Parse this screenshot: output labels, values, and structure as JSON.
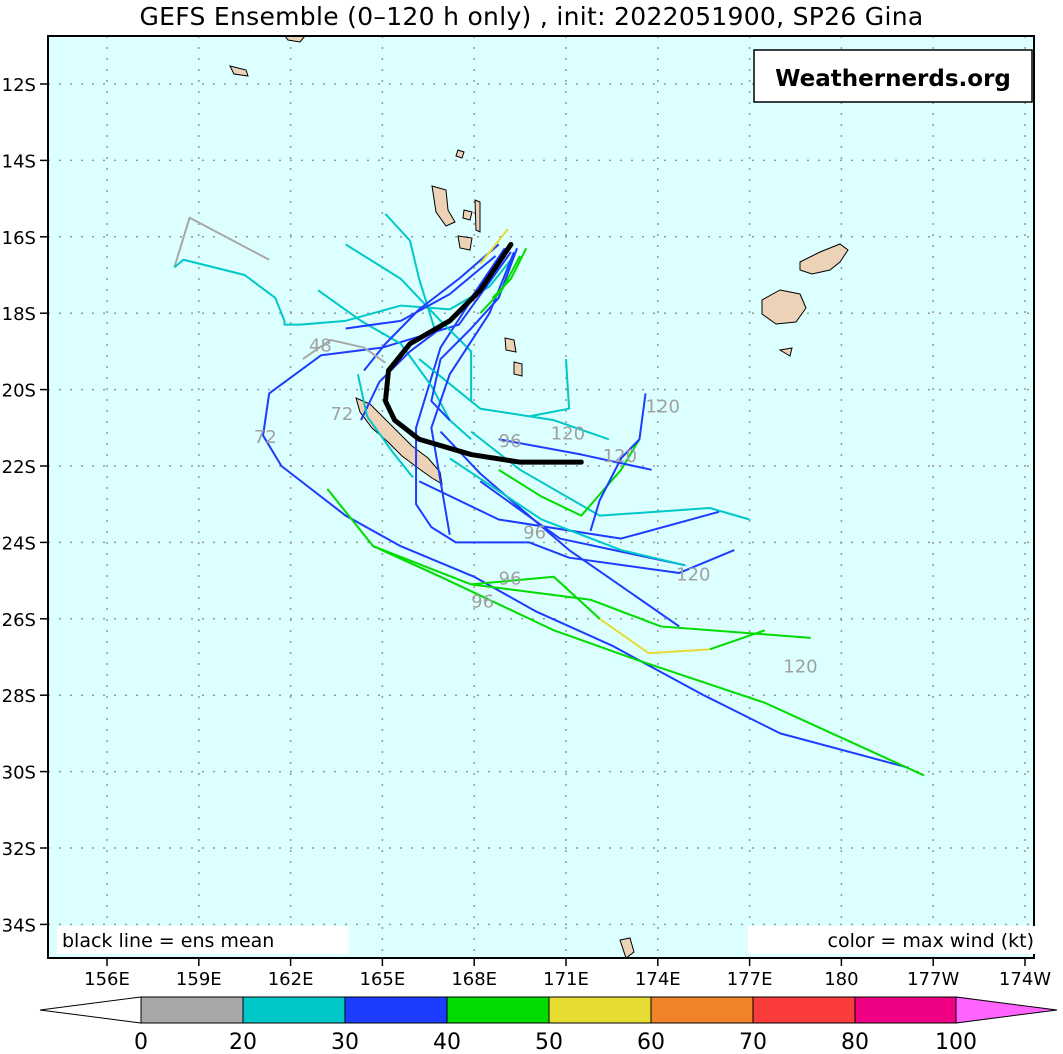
{
  "title": "GEFS Ensemble (0–120 h only) , init: 2022051900, SP26 Gina",
  "watermark": "Weathernerds.org",
  "legend_left": "black line = ens mean",
  "legend_right": "color = max wind (kt)",
  "chart_data": {
    "type": "map-tracks",
    "lon_range": [
      154.1,
      186.2
    ],
    "lat_range": [
      -35.0,
      -10.7
    ],
    "lat_ticks": [
      "12S",
      "14S",
      "16S",
      "18S",
      "20S",
      "22S",
      "24S",
      "26S",
      "28S",
      "30S",
      "32S",
      "34S"
    ],
    "lat_tick_values": [
      -12,
      -14,
      -16,
      -18,
      -20,
      -22,
      -24,
      -26,
      -28,
      -30,
      -32,
      -34
    ],
    "lon_ticks": [
      "156E",
      "159E",
      "162E",
      "165E",
      "168E",
      "171E",
      "174E",
      "177E",
      "180",
      "177W",
      "174W"
    ],
    "lon_tick_values": [
      156,
      159,
      162,
      165,
      168,
      171,
      174,
      177,
      180,
      183,
      186
    ],
    "colorbar": {
      "labels": [
        "0",
        "20",
        "30",
        "40",
        "50",
        "60",
        "70",
        "80",
        "100"
      ],
      "colors": [
        "#a8a8a8",
        "#00c8c8",
        "#1e3cff",
        "#00dc00",
        "#e6dc32",
        "#f08228",
        "#fa3c3c",
        "#f00082",
        "#ff64ff"
      ]
    },
    "hour_labels": [
      {
        "text": "48",
        "lon": 162.6,
        "lat": -19.0
      },
      {
        "text": "72",
        "lon": 163.3,
        "lat": -20.8
      },
      {
        "text": "72",
        "lon": 160.8,
        "lat": -21.4
      },
      {
        "text": "96",
        "lon": 168.8,
        "lat": -21.5
      },
      {
        "text": "120",
        "lon": 170.5,
        "lat": -21.3
      },
      {
        "text": "120",
        "lon": 173.6,
        "lat": -20.6
      },
      {
        "text": "120",
        "lon": 172.2,
        "lat": -21.9
      },
      {
        "text": "96",
        "lon": 169.6,
        "lat": -23.9
      },
      {
        "text": "96",
        "lon": 168.8,
        "lat": -25.1
      },
      {
        "text": "96",
        "lon": 167.9,
        "lat": -25.7
      },
      {
        "text": "120",
        "lon": 174.6,
        "lat": -25.0
      },
      {
        "text": "120",
        "lon": 178.1,
        "lat": -27.4
      }
    ],
    "ensemble_mean": [
      [
        169.2,
        -16.2
      ],
      [
        168.2,
        -17.4
      ],
      [
        167.2,
        -18.2
      ],
      [
        165.9,
        -18.8
      ],
      [
        165.2,
        -19.5
      ],
      [
        165.1,
        -20.3
      ],
      [
        165.4,
        -20.8
      ],
      [
        166.2,
        -21.3
      ],
      [
        167.9,
        -21.7
      ],
      [
        169.5,
        -21.9
      ],
      [
        171.5,
        -21.9
      ]
    ],
    "members": [
      {
        "color": "#a8a8a8",
        "pts": [
          [
            158.2,
            -16.8
          ],
          [
            158.7,
            -15.5
          ],
          [
            161.3,
            -16.6
          ]
        ]
      },
      {
        "color": "#00c8c8",
        "pts": [
          [
            158.2,
            -16.8
          ],
          [
            158.5,
            -16.6
          ],
          [
            160.5,
            -17.0
          ],
          [
            161.5,
            -17.6
          ],
          [
            161.8,
            -18.2
          ],
          [
            161.8,
            -18.3
          ],
          [
            162.3,
            -18.3
          ],
          [
            163.8,
            -18.2
          ],
          [
            165.6,
            -17.8
          ],
          [
            167.2,
            -17.9
          ],
          [
            168.5,
            -17.3
          ],
          [
            169.3,
            -16.5
          ]
        ]
      },
      {
        "color": "#1e3cff",
        "pts": [
          [
            169.2,
            -16.4
          ],
          [
            167.5,
            -18.3
          ],
          [
            165.0,
            -18.9
          ],
          [
            163.0,
            -19.1
          ],
          [
            161.3,
            -20.1
          ],
          [
            161.1,
            -21.2
          ],
          [
            161.7,
            -22.0
          ],
          [
            163.8,
            -23.3
          ],
          [
            165.6,
            -24.1
          ],
          [
            168.0,
            -24.9
          ],
          [
            170.0,
            -25.8
          ],
          [
            172.5,
            -26.7
          ],
          [
            175.5,
            -28.0
          ],
          [
            178.0,
            -29.0
          ],
          [
            182.2,
            -29.9
          ]
        ]
      },
      {
        "color": "#00dc00",
        "pts": [
          [
            163.2,
            -22.6
          ],
          [
            164.7,
            -24.1
          ],
          [
            166.9,
            -24.9
          ],
          [
            170.6,
            -26.3
          ],
          [
            173.4,
            -27.1
          ],
          [
            177.5,
            -28.2
          ],
          [
            182.7,
            -30.1
          ]
        ]
      },
      {
        "color": "#00dc00",
        "pts": [
          [
            164.7,
            -24.1
          ],
          [
            167.9,
            -25.1
          ],
          [
            171.8,
            -25.5
          ],
          [
            174.1,
            -26.2
          ],
          [
            179.0,
            -26.5
          ]
        ]
      },
      {
        "color": "#00dc00",
        "pts": [
          [
            167.9,
            -25.1
          ],
          [
            170.6,
            -24.9
          ],
          [
            172.1,
            -26.0
          ]
        ]
      },
      {
        "color": "#e6dc32",
        "pts": [
          [
            172.1,
            -26.0
          ],
          [
            173.7,
            -26.9
          ],
          [
            175.7,
            -26.8
          ]
        ]
      },
      {
        "color": "#00dc00",
        "pts": [
          [
            175.7,
            -26.8
          ],
          [
            177.5,
            -26.3
          ]
        ]
      },
      {
        "color": "#1e3cff",
        "pts": [
          [
            169.0,
            -16.3
          ],
          [
            166.9,
            -18.9
          ],
          [
            166.1,
            -21.0
          ],
          [
            166.1,
            -23.0
          ],
          [
            166.6,
            -23.6
          ],
          [
            167.4,
            -24.0
          ],
          [
            169.8,
            -24.0
          ],
          [
            171.1,
            -24.4
          ],
          [
            174.7,
            -24.8
          ],
          [
            176.5,
            -24.2
          ]
        ]
      },
      {
        "color": "#1e3cff",
        "pts": [
          [
            166.9,
            -21.1
          ],
          [
            168.2,
            -22.2
          ],
          [
            169.5,
            -23.1
          ],
          [
            171.1,
            -24.2
          ],
          [
            174.7,
            -26.2
          ]
        ]
      },
      {
        "color": "#00c8c8",
        "pts": [
          [
            167.9,
            -21.1
          ],
          [
            169.5,
            -22.1
          ],
          [
            172.1,
            -23.3
          ],
          [
            175.7,
            -23.1
          ],
          [
            177.0,
            -23.4
          ]
        ]
      },
      {
        "color": "#00dc00",
        "pts": [
          [
            168.8,
            -22.1
          ],
          [
            170.2,
            -22.8
          ],
          [
            171.5,
            -23.3
          ],
          [
            172.8,
            -22.1
          ],
          [
            173.4,
            -21.3
          ]
        ]
      },
      {
        "color": "#1e3cff",
        "pts": [
          [
            166.2,
            -22.4
          ],
          [
            168.8,
            -23.4
          ],
          [
            172.8,
            -23.9
          ],
          [
            176.0,
            -23.2
          ]
        ]
      },
      {
        "color": "#00c8c8",
        "pts": [
          [
            166.2,
            -19.2
          ],
          [
            168.2,
            -20.5
          ],
          [
            170.6,
            -20.8
          ],
          [
            172.4,
            -21.3
          ]
        ]
      },
      {
        "color": "#00c8c8",
        "pts": [
          [
            171.0,
            -19.2
          ],
          [
            171.1,
            -20.5
          ],
          [
            169.8,
            -20.7
          ]
        ]
      },
      {
        "color": "#1e3cff",
        "pts": [
          [
            173.6,
            -20.1
          ],
          [
            173.4,
            -21.3
          ],
          [
            172.8,
            -21.8
          ],
          [
            172.1,
            -22.9
          ],
          [
            171.8,
            -23.7
          ]
        ]
      },
      {
        "color": "#1e3cff",
        "pts": [
          [
            168.8,
            -21.3
          ],
          [
            171.5,
            -21.7
          ],
          [
            173.8,
            -22.1
          ]
        ]
      },
      {
        "color": "#00c8c8",
        "pts": [
          [
            163.8,
            -16.2
          ],
          [
            165.6,
            -17.1
          ],
          [
            166.9,
            -18.2
          ],
          [
            167.9,
            -19.0
          ],
          [
            167.9,
            -20.3
          ]
        ]
      },
      {
        "color": "#00c8c8",
        "pts": [
          [
            165.1,
            -15.4
          ],
          [
            165.9,
            -16.1
          ],
          [
            166.2,
            -17.1
          ],
          [
            166.7,
            -18.4
          ]
        ]
      },
      {
        "color": "#00c8c8",
        "pts": [
          [
            162.9,
            -17.4
          ],
          [
            164.3,
            -18.2
          ],
          [
            165.6,
            -18.8
          ],
          [
            166.6,
            -19.9
          ],
          [
            167.2,
            -20.8
          ],
          [
            167.9,
            -21.3
          ]
        ]
      },
      {
        "color": "#1e3cff",
        "pts": [
          [
            168.2,
            -22.4
          ],
          [
            170.8,
            -23.9
          ],
          [
            174.9,
            -24.6
          ]
        ]
      },
      {
        "color": "#00c8c8",
        "pts": [
          [
            167.2,
            -21.8
          ],
          [
            170.2,
            -23.4
          ],
          [
            172.8,
            -24.2
          ],
          [
            174.9,
            -24.6
          ]
        ]
      },
      {
        "color": "#1e3cff",
        "pts": [
          [
            168.8,
            -16.2
          ],
          [
            167.5,
            -17.1
          ],
          [
            166.2,
            -17.9
          ],
          [
            165.1,
            -18.8
          ],
          [
            164.4,
            -19.5
          ]
        ]
      },
      {
        "color": "#1e3cff",
        "pts": [
          [
            169.0,
            -16.3
          ],
          [
            167.9,
            -17.6
          ],
          [
            166.9,
            -18.4
          ],
          [
            165.9,
            -19.0
          ],
          [
            164.9,
            -19.8
          ],
          [
            164.3,
            -20.8
          ]
        ]
      },
      {
        "color": "#1e3cff",
        "pts": [
          [
            168.7,
            -16.5
          ],
          [
            167.2,
            -17.5
          ],
          [
            165.6,
            -18.2
          ],
          [
            163.8,
            -18.4
          ]
        ]
      },
      {
        "color": "#1e3cff",
        "pts": [
          [
            169.4,
            -16.3
          ],
          [
            168.8,
            -17.6
          ],
          [
            167.9,
            -18.4
          ],
          [
            166.9,
            -19.2
          ],
          [
            166.6,
            -20.3
          ],
          [
            167.2,
            -20.8
          ]
        ]
      },
      {
        "color": "#1e3cff",
        "pts": [
          [
            169.3,
            -16.4
          ],
          [
            168.5,
            -18.0
          ],
          [
            167.2,
            -19.6
          ],
          [
            166.6,
            -21.0
          ],
          [
            166.9,
            -22.4
          ],
          [
            167.2,
            -23.8
          ]
        ]
      },
      {
        "color": "#00dc00",
        "pts": [
          [
            169.5,
            -16.5
          ],
          [
            168.9,
            -17.4
          ],
          [
            168.2,
            -18.0
          ]
        ]
      },
      {
        "color": "#00dc00",
        "pts": [
          [
            169.7,
            -16.3
          ],
          [
            169.2,
            -17.1
          ],
          [
            168.6,
            -17.6
          ]
        ]
      },
      {
        "color": "#e6dc32",
        "pts": [
          [
            169.1,
            -15.8
          ],
          [
            168.6,
            -16.3
          ],
          [
            168.2,
            -16.7
          ]
        ]
      },
      {
        "color": "#a8a8a8",
        "pts": [
          [
            162.4,
            -19.2
          ],
          [
            163.3,
            -18.7
          ],
          [
            164.4,
            -18.9
          ],
          [
            165.1,
            -19.3
          ]
        ]
      },
      {
        "color": "#00c8c8",
        "pts": [
          [
            164.2,
            -19.6
          ],
          [
            164.5,
            -20.7
          ],
          [
            165.3,
            -21.6
          ],
          [
            166.0,
            -22.3
          ]
        ]
      }
    ]
  }
}
